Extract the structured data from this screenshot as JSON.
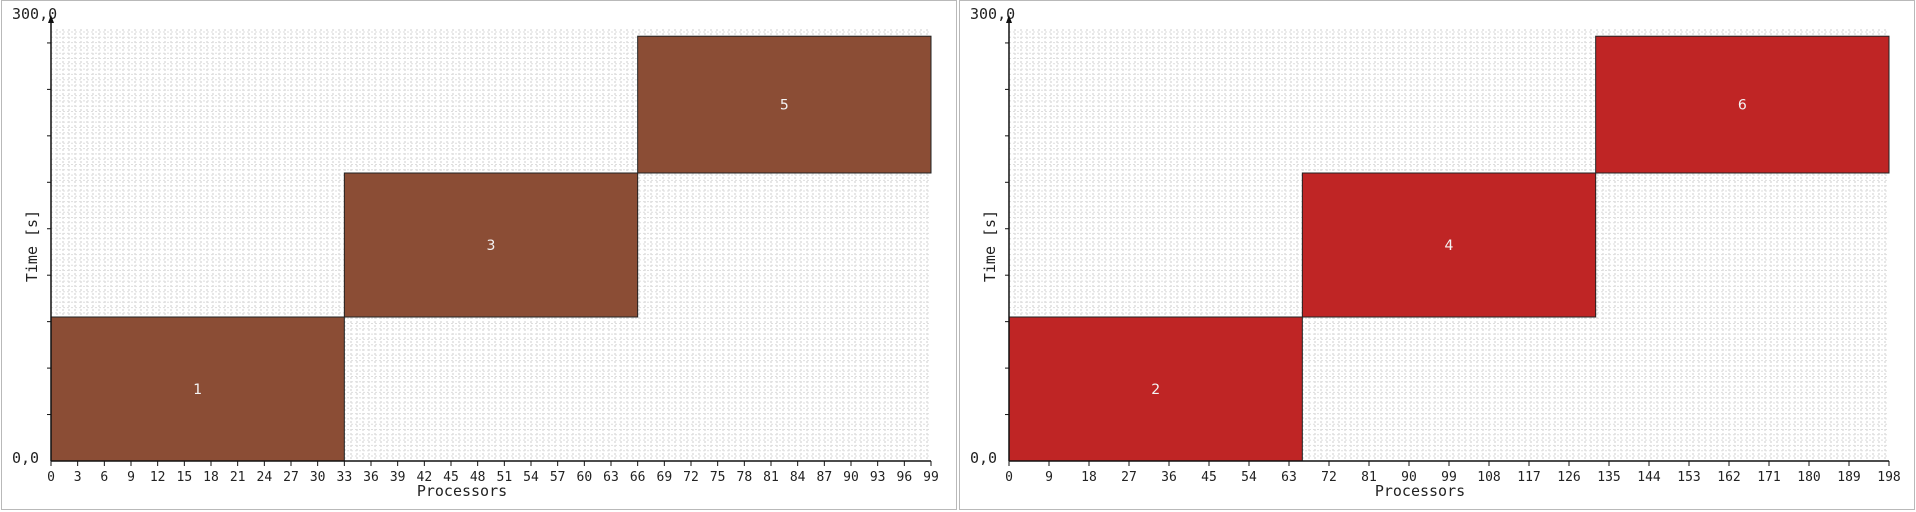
{
  "chart_data": [
    {
      "type": "gantt",
      "xlabel": "Processors",
      "ylabel": "Time [s]",
      "ymin_label": "0,0",
      "ymax_label": "300,0",
      "xlim": [
        0,
        99
      ],
      "ylim": [
        0,
        300
      ],
      "x_ticks": [
        0,
        3,
        6,
        9,
        12,
        15,
        18,
        21,
        24,
        27,
        30,
        33,
        36,
        39,
        42,
        45,
        48,
        51,
        54,
        57,
        60,
        63,
        66,
        69,
        72,
        75,
        78,
        81,
        84,
        87,
        90,
        93,
        96,
        99
      ],
      "grid": true,
      "bar_color": "#8b4d35",
      "jobs": [
        {
          "label": "1",
          "x0": 0,
          "x1": 33,
          "y0": 0,
          "y1": 100
        },
        {
          "label": "3",
          "x0": 33,
          "x1": 66,
          "y0": 100,
          "y1": 200
        },
        {
          "label": "5",
          "x0": 66,
          "x1": 99,
          "y0": 200,
          "y1": 295
        }
      ]
    },
    {
      "type": "gantt",
      "xlabel": "Processors",
      "ylabel": "Time [s]",
      "ymin_label": "0,0",
      "ymax_label": "300,0",
      "xlim": [
        0,
        198
      ],
      "ylim": [
        0,
        300
      ],
      "x_ticks": [
        0,
        9,
        18,
        27,
        36,
        45,
        54,
        63,
        72,
        81,
        90,
        99,
        108,
        117,
        126,
        135,
        144,
        153,
        162,
        171,
        180,
        189,
        198
      ],
      "grid": true,
      "bar_color": "#bf2525",
      "jobs": [
        {
          "label": "2",
          "x0": 0,
          "x1": 66,
          "y0": 0,
          "y1": 100
        },
        {
          "label": "4",
          "x0": 66,
          "x1": 132,
          "y0": 100,
          "y1": 200
        },
        {
          "label": "6",
          "x0": 132,
          "x1": 198,
          "y0": 200,
          "y1": 295
        }
      ]
    }
  ]
}
